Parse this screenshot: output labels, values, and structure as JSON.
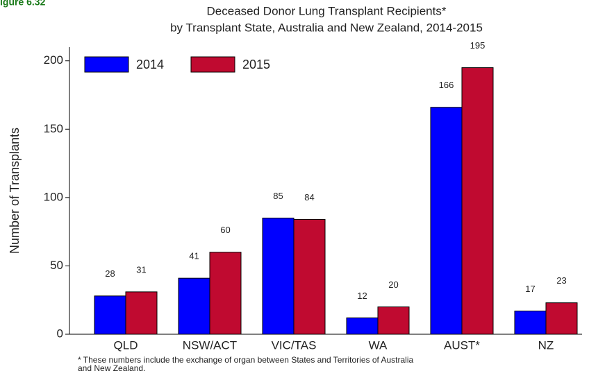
{
  "chart_data": {
    "type": "bar",
    "figure_label": "igure 6.32",
    "title": [
      "Deceased Donor Lung Transplant Recipients*",
      "by Transplant State, Australia and New Zealand, 2014-2015"
    ],
    "y_label": "Number of Transplants",
    "categories": [
      "QLD",
      "NSW/ACT",
      "VIC/TAS",
      "WA",
      "AUST*",
      "NZ"
    ],
    "series": [
      {
        "name": "2014",
        "color": "#0000ff",
        "values": [
          28,
          41,
          85,
          12,
          166,
          17
        ]
      },
      {
        "name": "2015",
        "color": "#c00a30",
        "values": [
          31,
          60,
          84,
          20,
          195,
          23
        ]
      }
    ],
    "ylim": [
      0,
      210
    ],
    "yticks": [
      0,
      50,
      100,
      150,
      200
    ],
    "legend": "upper left",
    "footnote": [
      "* These numbers include the exchange of organ between States and Territories of Australia",
      "and New Zealand."
    ]
  }
}
